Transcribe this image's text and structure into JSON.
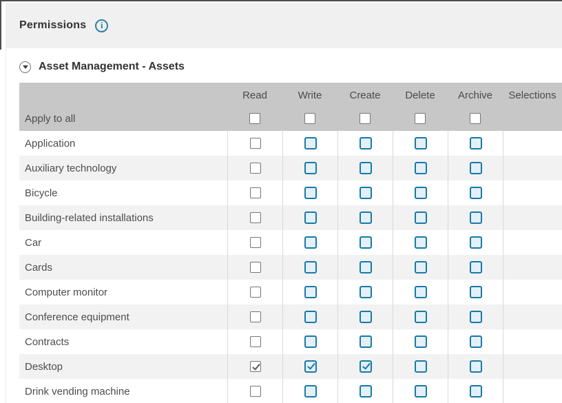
{
  "page": {
    "title": "Permissions",
    "info_icon": "info"
  },
  "section": {
    "title": "Asset Management - Assets"
  },
  "colors": {
    "accent_teal": "#1779a7",
    "header_gray": "#c7c7c7",
    "row_alt": "#f2f2f2",
    "band_gray": "#f0f0f0"
  },
  "table": {
    "columns": [
      "Read",
      "Write",
      "Create",
      "Delete",
      "Archive",
      "Selections"
    ],
    "check_columns": [
      "read",
      "write",
      "create",
      "delete",
      "archive"
    ],
    "apply_row": {
      "label": "Apply to all",
      "checks": {
        "read": false,
        "write": false,
        "create": false,
        "delete": false,
        "archive": false
      }
    },
    "rows": [
      {
        "label": "Application",
        "checks": {
          "read": false,
          "write": false,
          "create": false,
          "delete": false,
          "archive": false
        }
      },
      {
        "label": "Auxiliary technology",
        "checks": {
          "read": false,
          "write": false,
          "create": false,
          "delete": false,
          "archive": false
        }
      },
      {
        "label": "Bicycle",
        "checks": {
          "read": false,
          "write": false,
          "create": false,
          "delete": false,
          "archive": false
        }
      },
      {
        "label": "Building-related installations",
        "checks": {
          "read": false,
          "write": false,
          "create": false,
          "delete": false,
          "archive": false
        }
      },
      {
        "label": "Car",
        "checks": {
          "read": false,
          "write": false,
          "create": false,
          "delete": false,
          "archive": false
        }
      },
      {
        "label": "Cards",
        "checks": {
          "read": false,
          "write": false,
          "create": false,
          "delete": false,
          "archive": false
        }
      },
      {
        "label": "Computer monitor",
        "checks": {
          "read": false,
          "write": false,
          "create": false,
          "delete": false,
          "archive": false
        }
      },
      {
        "label": "Conference equipment",
        "checks": {
          "read": false,
          "write": false,
          "create": false,
          "delete": false,
          "archive": false
        }
      },
      {
        "label": "Contracts",
        "checks": {
          "read": false,
          "write": false,
          "create": false,
          "delete": false,
          "archive": false
        }
      },
      {
        "label": "Desktop",
        "checks": {
          "read": true,
          "write": true,
          "create": true,
          "delete": false,
          "archive": false
        }
      },
      {
        "label": "Drink vending machine",
        "checks": {
          "read": false,
          "write": false,
          "create": false,
          "delete": false,
          "archive": false
        }
      }
    ]
  }
}
